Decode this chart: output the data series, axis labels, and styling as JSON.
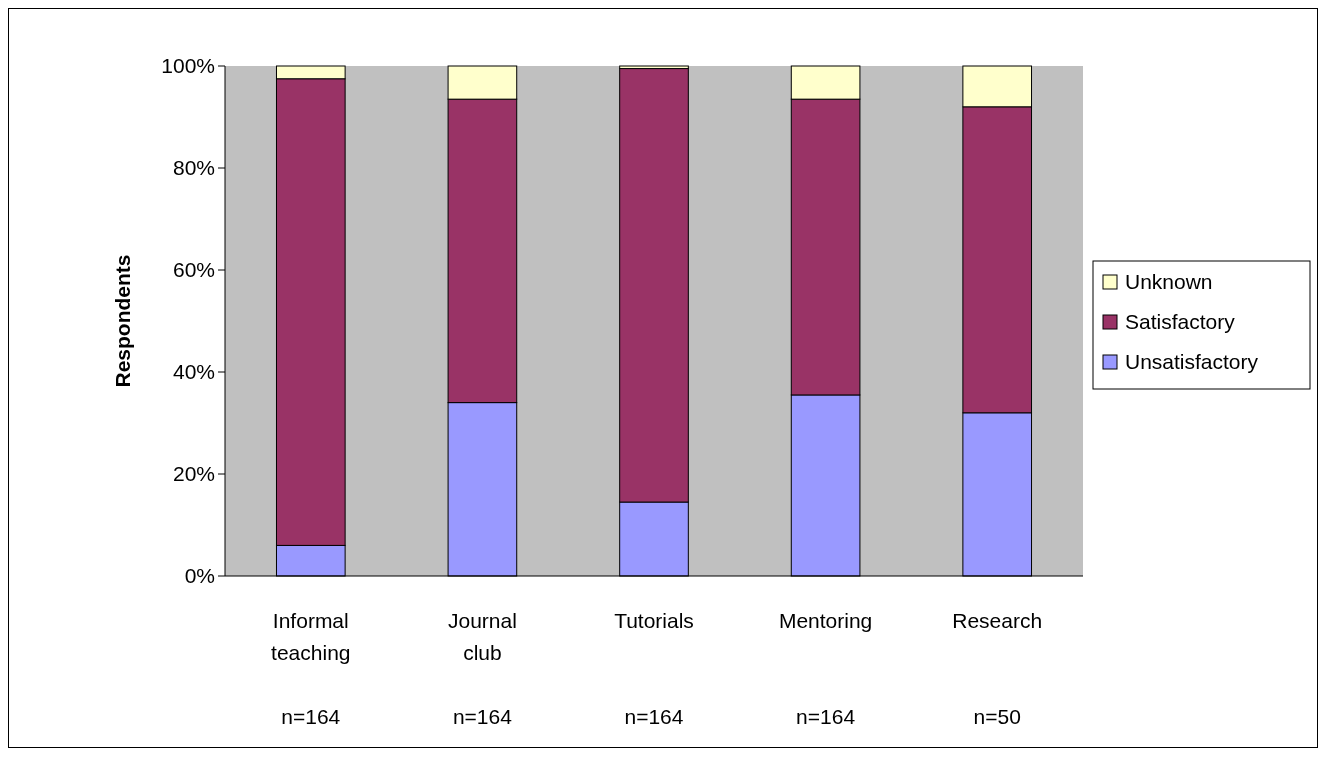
{
  "chart_data": {
    "type": "bar",
    "stacked": true,
    "ylabel": "Respondents",
    "categories": [
      "Informal teaching",
      "Journal club",
      "Tutorials",
      "Mentoring",
      "Research"
    ],
    "series": [
      {
        "name": "Unsatisfactory",
        "color": "#9999ff",
        "values": [
          6,
          34,
          14.5,
          35.5,
          32
        ]
      },
      {
        "name": "Satisfactory",
        "color": "#993366",
        "values": [
          91.5,
          59.5,
          85,
          58,
          60
        ]
      },
      {
        "name": "Unknown",
        "color": "#ffffcc",
        "values": [
          2.5,
          6.5,
          0.5,
          6.5,
          8
        ]
      }
    ],
    "ylim": [
      0,
      100
    ],
    "yticks": [
      {
        "value": 0,
        "label": "0%"
      },
      {
        "value": 20,
        "label": "20%"
      },
      {
        "value": 40,
        "label": "40%"
      },
      {
        "value": 60,
        "label": "60%"
      },
      {
        "value": 80,
        "label": "80%"
      },
      {
        "value": 100,
        "label": "100%"
      }
    ],
    "grid": false,
    "legend": "right",
    "annotations": [
      "n=164",
      "n=164",
      "n=164",
      "n=164",
      "n=50"
    ]
  }
}
